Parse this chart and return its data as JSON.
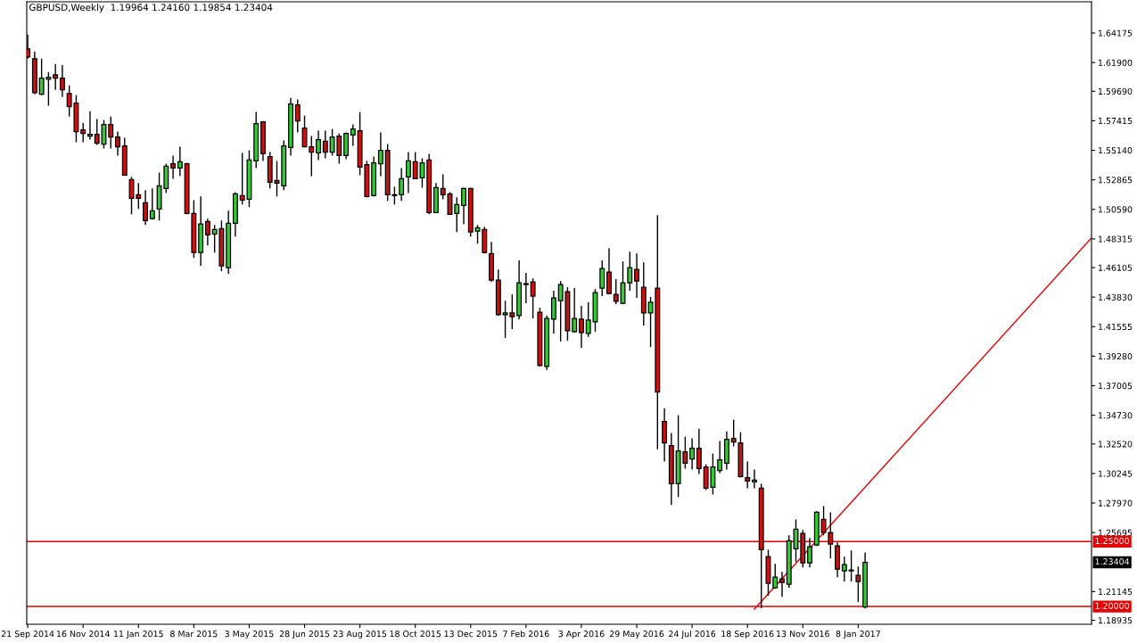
{
  "chart_data": {
    "type": "candlestick",
    "title": "GBPUSD,Weekly  1.19964 1.24160 1.19854 1.23404",
    "x": [
      "2014-09-21",
      "2014-09-28",
      "2014-10-05",
      "2014-10-12",
      "2014-10-19",
      "2014-10-26",
      "2014-11-02",
      "2014-11-09",
      "2014-11-16",
      "2014-11-23",
      "2014-11-30",
      "2014-12-07",
      "2014-12-14",
      "2014-12-21",
      "2014-12-28",
      "2015-01-04",
      "2015-01-11",
      "2015-01-18",
      "2015-01-25",
      "2015-02-01",
      "2015-02-08",
      "2015-02-15",
      "2015-02-22",
      "2015-03-01",
      "2015-03-08",
      "2015-03-15",
      "2015-03-22",
      "2015-03-29",
      "2015-04-05",
      "2015-04-12",
      "2015-04-19",
      "2015-04-26",
      "2015-05-03",
      "2015-05-10",
      "2015-05-17",
      "2015-05-24",
      "2015-05-31",
      "2015-06-07",
      "2015-06-14",
      "2015-06-21",
      "2015-06-28",
      "2015-07-05",
      "2015-07-12",
      "2015-07-19",
      "2015-07-26",
      "2015-08-02",
      "2015-08-09",
      "2015-08-16",
      "2015-08-23",
      "2015-08-30",
      "2015-09-06",
      "2015-09-13",
      "2015-09-20",
      "2015-09-27",
      "2015-10-04",
      "2015-10-11",
      "2015-10-18",
      "2015-10-25",
      "2015-11-01",
      "2015-11-08",
      "2015-11-15",
      "2015-11-22",
      "2015-11-29",
      "2015-12-06",
      "2015-12-13",
      "2015-12-20",
      "2015-12-27",
      "2016-01-03",
      "2016-01-10",
      "2016-01-17",
      "2016-01-24",
      "2016-01-31",
      "2016-02-07",
      "2016-02-14",
      "2016-02-21",
      "2016-02-28",
      "2016-03-06",
      "2016-03-13",
      "2016-03-20",
      "2016-03-27",
      "2016-04-03",
      "2016-04-10",
      "2016-04-17",
      "2016-04-24",
      "2016-05-01",
      "2016-05-08",
      "2016-05-15",
      "2016-05-22",
      "2016-05-29",
      "2016-06-05",
      "2016-06-12",
      "2016-06-19",
      "2016-06-26",
      "2016-07-03",
      "2016-07-10",
      "2016-07-17",
      "2016-07-24",
      "2016-07-31",
      "2016-08-07",
      "2016-08-14",
      "2016-08-21",
      "2016-08-28",
      "2016-09-04",
      "2016-09-11",
      "2016-09-18",
      "2016-09-25",
      "2016-10-02",
      "2016-10-09",
      "2016-10-16",
      "2016-10-23",
      "2016-10-30",
      "2016-11-06",
      "2016-11-13",
      "2016-11-20",
      "2016-11-27",
      "2016-12-04",
      "2016-12-11",
      "2016-12-18",
      "2016-12-25",
      "2017-01-01",
      "2017-01-08",
      "2017-01-15"
    ],
    "ohlc": [
      [
        1.6295,
        1.6405,
        1.622,
        1.6233
      ],
      [
        1.622,
        1.6274,
        1.5946,
        1.5959
      ],
      [
        1.5946,
        1.622,
        1.5939,
        1.6069
      ],
      [
        1.6062,
        1.6117,
        1.5857,
        1.6076
      ],
      [
        1.6096,
        1.6179,
        1.598,
        1.6069
      ],
      [
        1.6069,
        1.6172,
        1.5925,
        1.598
      ],
      [
        1.5952,
        1.6014,
        1.5774,
        1.585
      ],
      [
        1.5877,
        1.5939,
        1.5576,
        1.5658
      ],
      [
        1.5672,
        1.5726,
        1.5576,
        1.5644
      ],
      [
        1.5624,
        1.5815,
        1.5596,
        1.5637
      ],
      [
        1.5637,
        1.5754,
        1.5555,
        1.5569
      ],
      [
        1.5562,
        1.5747,
        1.5528,
        1.5713
      ],
      [
        1.5713,
        1.5774,
        1.5528,
        1.5617
      ],
      [
        1.5617,
        1.5658,
        1.5473,
        1.5541
      ],
      [
        1.5548,
        1.561,
        1.5322,
        1.5322
      ],
      [
        1.5288,
        1.5309,
        1.5021,
        1.5144
      ],
      [
        1.5172,
        1.5261,
        1.5062,
        1.5144
      ],
      [
        1.511,
        1.5206,
        1.4939,
        1.4973
      ],
      [
        1.4987,
        1.522,
        1.498,
        1.5048
      ],
      [
        1.5062,
        1.5343,
        1.4973,
        1.524
      ],
      [
        1.522,
        1.5411,
        1.5185,
        1.5391
      ],
      [
        1.5411,
        1.5473,
        1.5295,
        1.5377
      ],
      [
        1.5377,
        1.5541,
        1.5315,
        1.5425
      ],
      [
        1.5411,
        1.5418,
        1.5021,
        1.5028
      ],
      [
        1.5028,
        1.513,
        1.4685,
        1.4726
      ],
      [
        1.4726,
        1.5158,
        1.4624,
        1.4946
      ],
      [
        1.4966,
        1.4987,
        1.4781,
        1.4863
      ],
      [
        1.487,
        1.4939,
        1.4726,
        1.4904
      ],
      [
        1.4911,
        1.4973,
        1.4582,
        1.4624
      ],
      [
        1.461,
        1.5048,
        1.4562,
        1.4952
      ],
      [
        1.4952,
        1.5192,
        1.485,
        1.5178
      ],
      [
        1.5165,
        1.5494,
        1.5096,
        1.513
      ],
      [
        1.5137,
        1.5514,
        1.5076,
        1.5439
      ],
      [
        1.5432,
        1.5809,
        1.5377,
        1.572
      ],
      [
        1.5733,
        1.574,
        1.5432,
        1.5487
      ],
      [
        1.5466,
        1.55,
        1.522,
        1.5267
      ],
      [
        1.5281,
        1.5432,
        1.5158,
        1.5261
      ],
      [
        1.524,
        1.5589,
        1.5206,
        1.5548
      ],
      [
        1.5535,
        1.5918,
        1.5473,
        1.587
      ],
      [
        1.5863,
        1.5905,
        1.5651,
        1.574
      ],
      [
        1.5685,
        1.5781,
        1.5541,
        1.5541
      ],
      [
        1.5541,
        1.5624,
        1.5315,
        1.55
      ],
      [
        1.5494,
        1.5665,
        1.5439,
        1.5596
      ],
      [
        1.5583,
        1.5665,
        1.5452,
        1.55
      ],
      [
        1.55,
        1.5678,
        1.5473,
        1.5617
      ],
      [
        1.5624,
        1.5644,
        1.5411,
        1.5473
      ],
      [
        1.5473,
        1.5651,
        1.5446,
        1.5644
      ],
      [
        1.5631,
        1.5713,
        1.5548,
        1.5678
      ],
      [
        1.5665,
        1.5809,
        1.5322,
        1.5384
      ],
      [
        1.5404,
        1.5432,
        1.5151,
        1.5158
      ],
      [
        1.5165,
        1.5466,
        1.5158,
        1.5418
      ],
      [
        1.5411,
        1.5651,
        1.5315,
        1.5514
      ],
      [
        1.5514,
        1.5562,
        1.5124,
        1.5172
      ],
      [
        1.5172,
        1.5233,
        1.5096,
        1.5165
      ],
      [
        1.5172,
        1.5377,
        1.5124,
        1.5295
      ],
      [
        1.5309,
        1.55,
        1.5185,
        1.5432
      ],
      [
        1.5425,
        1.55,
        1.5295,
        1.5295
      ],
      [
        1.5302,
        1.5452,
        1.5226,
        1.5418
      ],
      [
        1.5439,
        1.5487,
        1.5021,
        1.5035
      ],
      [
        1.5035,
        1.5261,
        1.5035,
        1.5226
      ],
      [
        1.522,
        1.5329,
        1.5137,
        1.5172
      ],
      [
        1.5178,
        1.5192,
        1.5021,
        1.5021
      ],
      [
        1.5028,
        1.5151,
        1.4884,
        1.5096
      ],
      [
        1.5089,
        1.5226,
        1.4946,
        1.522
      ],
      [
        1.522,
        1.5226,
        1.485,
        1.4884
      ],
      [
        1.4891,
        1.4939,
        1.4795,
        1.4918
      ],
      [
        1.4904,
        1.4925,
        1.4719,
        1.4726
      ],
      [
        1.4719,
        1.4809,
        1.45,
        1.4514
      ],
      [
        1.4514,
        1.4596,
        1.424,
        1.4247
      ],
      [
        1.4247,
        1.4356,
        1.4069,
        1.4261
      ],
      [
        1.4261,
        1.4404,
        1.4137,
        1.4233
      ],
      [
        1.424,
        1.4665,
        1.4213,
        1.4493
      ],
      [
        1.448,
        1.4569,
        1.4336,
        1.4487
      ],
      [
        1.45,
        1.4528,
        1.4219,
        1.4391
      ],
      [
        1.4267,
        1.4302,
        1.385,
        1.3856
      ],
      [
        1.385,
        1.424,
        1.3822,
        1.4219
      ],
      [
        1.4213,
        1.4432,
        1.4103,
        1.4377
      ],
      [
        1.4356,
        1.4507,
        1.4041,
        1.448
      ],
      [
        1.4425,
        1.4459,
        1.4048,
        1.4124
      ],
      [
        1.4117,
        1.4452,
        1.411,
        1.4219
      ],
      [
        1.4213,
        1.4315,
        1.3993,
        1.411
      ],
      [
        1.4103,
        1.4343,
        1.4076,
        1.4206
      ],
      [
        1.4192,
        1.4445,
        1.4117,
        1.4418
      ],
      [
        1.4452,
        1.4665,
        1.4391,
        1.4603
      ],
      [
        1.4576,
        1.4761,
        1.4404,
        1.4411
      ],
      [
        1.4404,
        1.4521,
        1.4329,
        1.435
      ],
      [
        1.4336,
        1.4658,
        1.4329,
        1.4493
      ],
      [
        1.4493,
        1.4733,
        1.4432,
        1.461
      ],
      [
        1.4596,
        1.4719,
        1.4377,
        1.4507
      ],
      [
        1.4459,
        1.4651,
        1.4165,
        1.4261
      ],
      [
        1.4261,
        1.4384,
        1.4,
        1.4343
      ],
      [
        1.4452,
        1.5014,
        1.3212,
        1.3651
      ],
      [
        1.3425,
        1.3528,
        1.3117,
        1.326
      ],
      [
        1.324,
        1.3336,
        1.2781,
        1.2945
      ],
      [
        1.2945,
        1.3473,
        1.2843,
        1.3199
      ],
      [
        1.3192,
        1.3308,
        1.3062,
        1.3103
      ],
      [
        1.3137,
        1.3295,
        1.3055,
        1.3219
      ],
      [
        1.3219,
        1.337,
        1.3021,
        1.3062
      ],
      [
        1.3075,
        1.3096,
        1.2897,
        1.2911
      ],
      [
        1.2918,
        1.3178,
        1.2863,
        1.3075
      ],
      [
        1.3048,
        1.3274,
        1.3028,
        1.313
      ],
      [
        1.3103,
        1.3349,
        1.3055,
        1.3288
      ],
      [
        1.3295,
        1.3439,
        1.3233,
        1.3267
      ],
      [
        1.326,
        1.3343,
        1.2993,
        1.3
      ],
      [
        1.2993,
        1.3117,
        1.2911,
        1.2966
      ],
      [
        1.2959,
        1.3055,
        1.2911,
        1.2973
      ],
      [
        1.2911,
        1.2945,
        1.1986,
        1.2438
      ],
      [
        1.2384,
        1.2438,
        1.2082,
        1.2178
      ],
      [
        1.2144,
        1.2329,
        1.2137,
        1.2226
      ],
      [
        1.2212,
        1.2267,
        1.2075,
        1.2185
      ],
      [
        1.2171,
        1.2548,
        1.2144,
        1.2507
      ],
      [
        1.2445,
        1.2671,
        1.2343,
        1.2596
      ],
      [
        1.2562,
        1.2589,
        1.2301,
        1.2336
      ],
      [
        1.2336,
        1.2527,
        1.2301,
        1.2459
      ],
      [
        1.2473,
        1.2733,
        1.2466,
        1.2726
      ],
      [
        1.2671,
        1.2774,
        1.2548,
        1.2569
      ],
      [
        1.2569,
        1.2726,
        1.237,
        1.248
      ],
      [
        1.2466,
        1.2493,
        1.2226,
        1.2288
      ],
      [
        1.2274,
        1.2384,
        1.2192,
        1.2322
      ],
      [
        1.2281,
        1.2432,
        1.2192,
        1.2274
      ],
      [
        1.224,
        1.2308,
        1.2034,
        1.2192
      ],
      [
        1.19964,
        1.2416,
        1.19854,
        1.23404
      ]
    ],
    "colors": [
      "#cc1111",
      "#cc1111",
      "#33cc33",
      "#33cc33",
      "#cc1111",
      "#cc1111",
      "#cc1111",
      "#cc1111",
      "#cc1111",
      "#33cc33",
      "#cc1111",
      "#33cc33",
      "#cc1111",
      "#cc1111",
      "#cc1111",
      "#cc1111",
      "#cc1111",
      "#cc1111",
      "#33cc33",
      "#33cc33",
      "#33cc33",
      "#cc1111",
      "#33cc33",
      "#cc1111",
      "#cc1111",
      "#33cc33",
      "#cc1111",
      "#33cc33",
      "#cc1111",
      "#33cc33",
      "#33cc33",
      "#cc1111",
      "#33cc33",
      "#33cc33",
      "#cc1111",
      "#cc1111",
      "#cc1111",
      "#33cc33",
      "#33cc33",
      "#cc1111",
      "#cc1111",
      "#cc1111",
      "#33cc33",
      "#cc1111",
      "#33cc33",
      "#cc1111",
      "#33cc33",
      "#33cc33",
      "#cc1111",
      "#cc1111",
      "#33cc33",
      "#33cc33",
      "#cc1111",
      "#cc1111",
      "#33cc33",
      "#33cc33",
      "#cc1111",
      "#33cc33",
      "#cc1111",
      "#33cc33",
      "#cc1111",
      "#cc1111",
      "#33cc33",
      "#33cc33",
      "#cc1111",
      "#33cc33",
      "#cc1111",
      "#cc1111",
      "#cc1111",
      "#33cc33",
      "#cc1111",
      "#33cc33",
      "#33cc33",
      "#cc1111",
      "#cc1111",
      "#33cc33",
      "#33cc33",
      "#33cc33",
      "#cc1111",
      "#33cc33",
      "#cc1111",
      "#33cc33",
      "#33cc33",
      "#33cc33",
      "#cc1111",
      "#cc1111",
      "#33cc33",
      "#33cc33",
      "#cc1111",
      "#cc1111",
      "#33cc33",
      "#cc1111",
      "#cc1111",
      "#cc1111",
      "#33cc33",
      "#cc1111",
      "#33cc33",
      "#cc1111",
      "#cc1111",
      "#33cc33",
      "#33cc33",
      "#33cc33",
      "#cc1111",
      "#cc1111",
      "#cc1111",
      "#33cc33",
      "#cc1111",
      "#cc1111",
      "#33cc33",
      "#cc1111",
      "#33cc33",
      "#33cc33",
      "#cc1111",
      "#33cc33",
      "#33cc33",
      "#cc1111",
      "#cc1111",
      "#cc1111",
      "#33cc33",
      "#cc1111",
      "#cc1111",
      "#33cc33"
    ],
    "series": [
      {
        "type": "line",
        "x": [
          "2016-09-25",
          "2017-09-01"
        ],
        "values": [
          1.198,
          1.484
        ],
        "color": "#e00000"
      }
    ],
    "xlim": [
      "2014-09-20",
      "2017-09-01"
    ],
    "xticks": [
      {
        "value": "2014-09-21",
        "label": "21 Sep 2014"
      },
      {
        "value": "2014-11-16",
        "label": "16 Nov 2014"
      },
      {
        "value": "2015-01-11",
        "label": "11 Jan 2015"
      },
      {
        "value": "2015-03-08",
        "label": "8 Mar 2015"
      },
      {
        "value": "2015-05-03",
        "label": "3 May 2015"
      },
      {
        "value": "2015-06-28",
        "label": "28 Jun 2015"
      },
      {
        "value": "2015-08-23",
        "label": "23 Aug 2015"
      },
      {
        "value": "2015-10-18",
        "label": "18 Oct 2015"
      },
      {
        "value": "2015-12-13",
        "label": "13 Dec 2015"
      },
      {
        "value": "2016-02-07",
        "label": "7 Feb 2016"
      },
      {
        "value": "2016-04-03",
        "label": "3 Apr 2016"
      },
      {
        "value": "2016-05-29",
        "label": "29 May 2016"
      },
      {
        "value": "2016-07-24",
        "label": "24 Jul 2016"
      },
      {
        "value": "2016-09-18",
        "label": "18 Sep 2016"
      },
      {
        "value": "2016-11-13",
        "label": "13 Nov 2016"
      },
      {
        "value": "2017-01-08",
        "label": "8 Jan 2017"
      }
    ],
    "ylim": [
      1.1863,
      1.6658
    ],
    "yticks": [
      1.64175,
      {
        "value": 1.619,
        "label": "1.61900"
      },
      {
        "value": 1.5969,
        "label": "1.59690"
      },
      1.57415,
      {
        "value": 1.5514,
        "label": "1.55140"
      },
      1.52865,
      {
        "value": 1.5059,
        "label": "1.50590"
      },
      1.48315,
      1.46105,
      {
        "value": 1.4383,
        "label": "1.43830"
      },
      1.41555,
      {
        "value": 1.3928,
        "label": "1.39280"
      },
      1.37005,
      {
        "value": 1.3473,
        "label": "1.34730"
      },
      {
        "value": 1.3252,
        "label": "1.32520"
      },
      1.30245,
      {
        "value": 1.2797,
        "label": "1.27970"
      },
      1.25695,
      1.21145,
      1.18935
    ],
    "ref_lines": [
      {
        "axis": "y",
        "value": 1.25,
        "label": "1.25000",
        "color": "#e00000"
      },
      {
        "axis": "y",
        "value": 1.2,
        "label": "1.20000",
        "color": "#e00000"
      }
    ],
    "annotations": [
      "1.23404"
    ],
    "grid": false,
    "legend": false
  }
}
